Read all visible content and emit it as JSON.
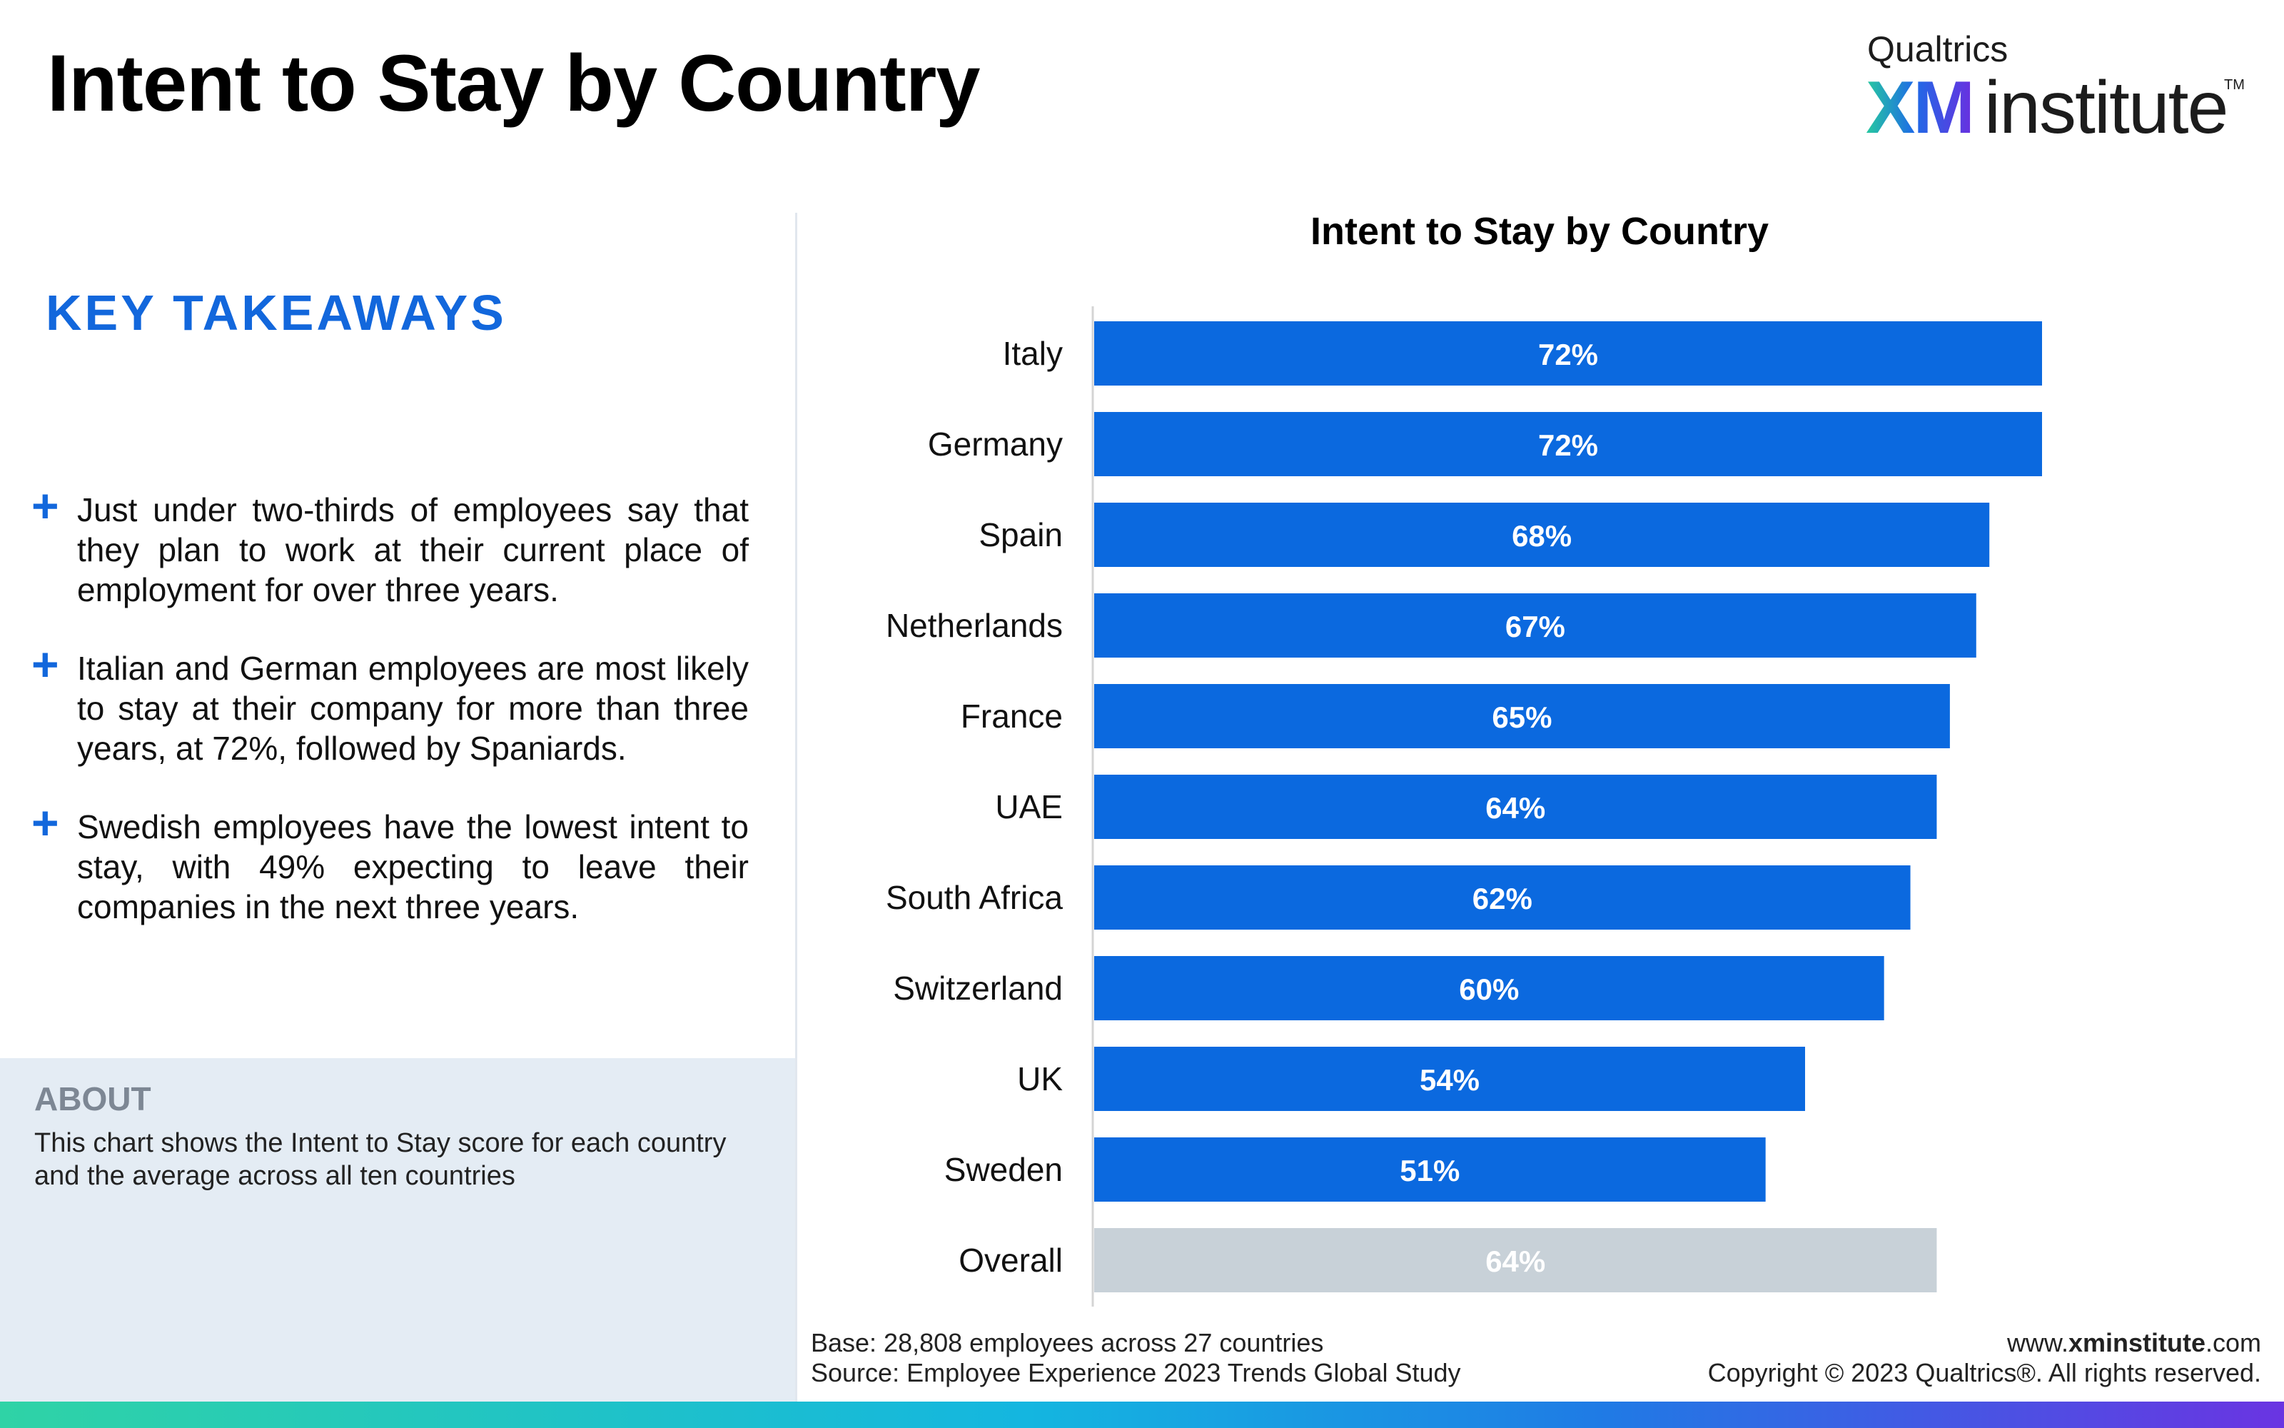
{
  "page": {
    "title": "Intent to Stay by Country",
    "logo": {
      "brand": "Qualtrics",
      "xm": "XM",
      "institute": "institute",
      "tm": "TM"
    }
  },
  "takeaways": {
    "heading": "KEY TAKEAWAYS",
    "items": [
      "Just under two-thirds of employees say that they plan to work at their current place of employment for over three years.",
      "Italian and German employees are most likely to stay at their company for more than three years, at 72%, followed by Spaniards.",
      "Swedish employees have the lowest intent to stay, with 49% expecting to leave their companies in the next three years."
    ]
  },
  "about": {
    "heading": "ABOUT",
    "text": "This chart shows the Intent to Stay score for each country and the average across all ten countries"
  },
  "footer": {
    "base": "Base: 28,808 employees across 27 countries",
    "source": "Source: Employee Experience 2023 Trends Global Study",
    "url_prefix": "www.",
    "url_bold": "xminstitute",
    "url_suffix": ".com",
    "copyright": "Copyright © 2023 Qualtrics®. All rights reserved."
  },
  "colors": {
    "bar": "#0b69df",
    "overall_bar": "#c8d1d8",
    "accent": "#1267dc",
    "label_on_bar": "#ffffff"
  },
  "chart_data": {
    "type": "bar",
    "orientation": "horizontal",
    "title": "Intent to Stay by Country",
    "xlabel": "",
    "ylabel": "",
    "xlim": [
      0,
      100
    ],
    "grid": false,
    "value_suffix": "%",
    "categories": [
      "Italy",
      "Germany",
      "Spain",
      "Netherlands",
      "France",
      "UAE",
      "South Africa",
      "Switzerland",
      "UK",
      "Sweden",
      "Overall"
    ],
    "values": [
      72,
      72,
      68,
      67,
      65,
      64,
      62,
      60,
      54,
      51,
      64
    ],
    "highlight": {
      "category": "Overall",
      "color": "#c8d1d8"
    }
  }
}
